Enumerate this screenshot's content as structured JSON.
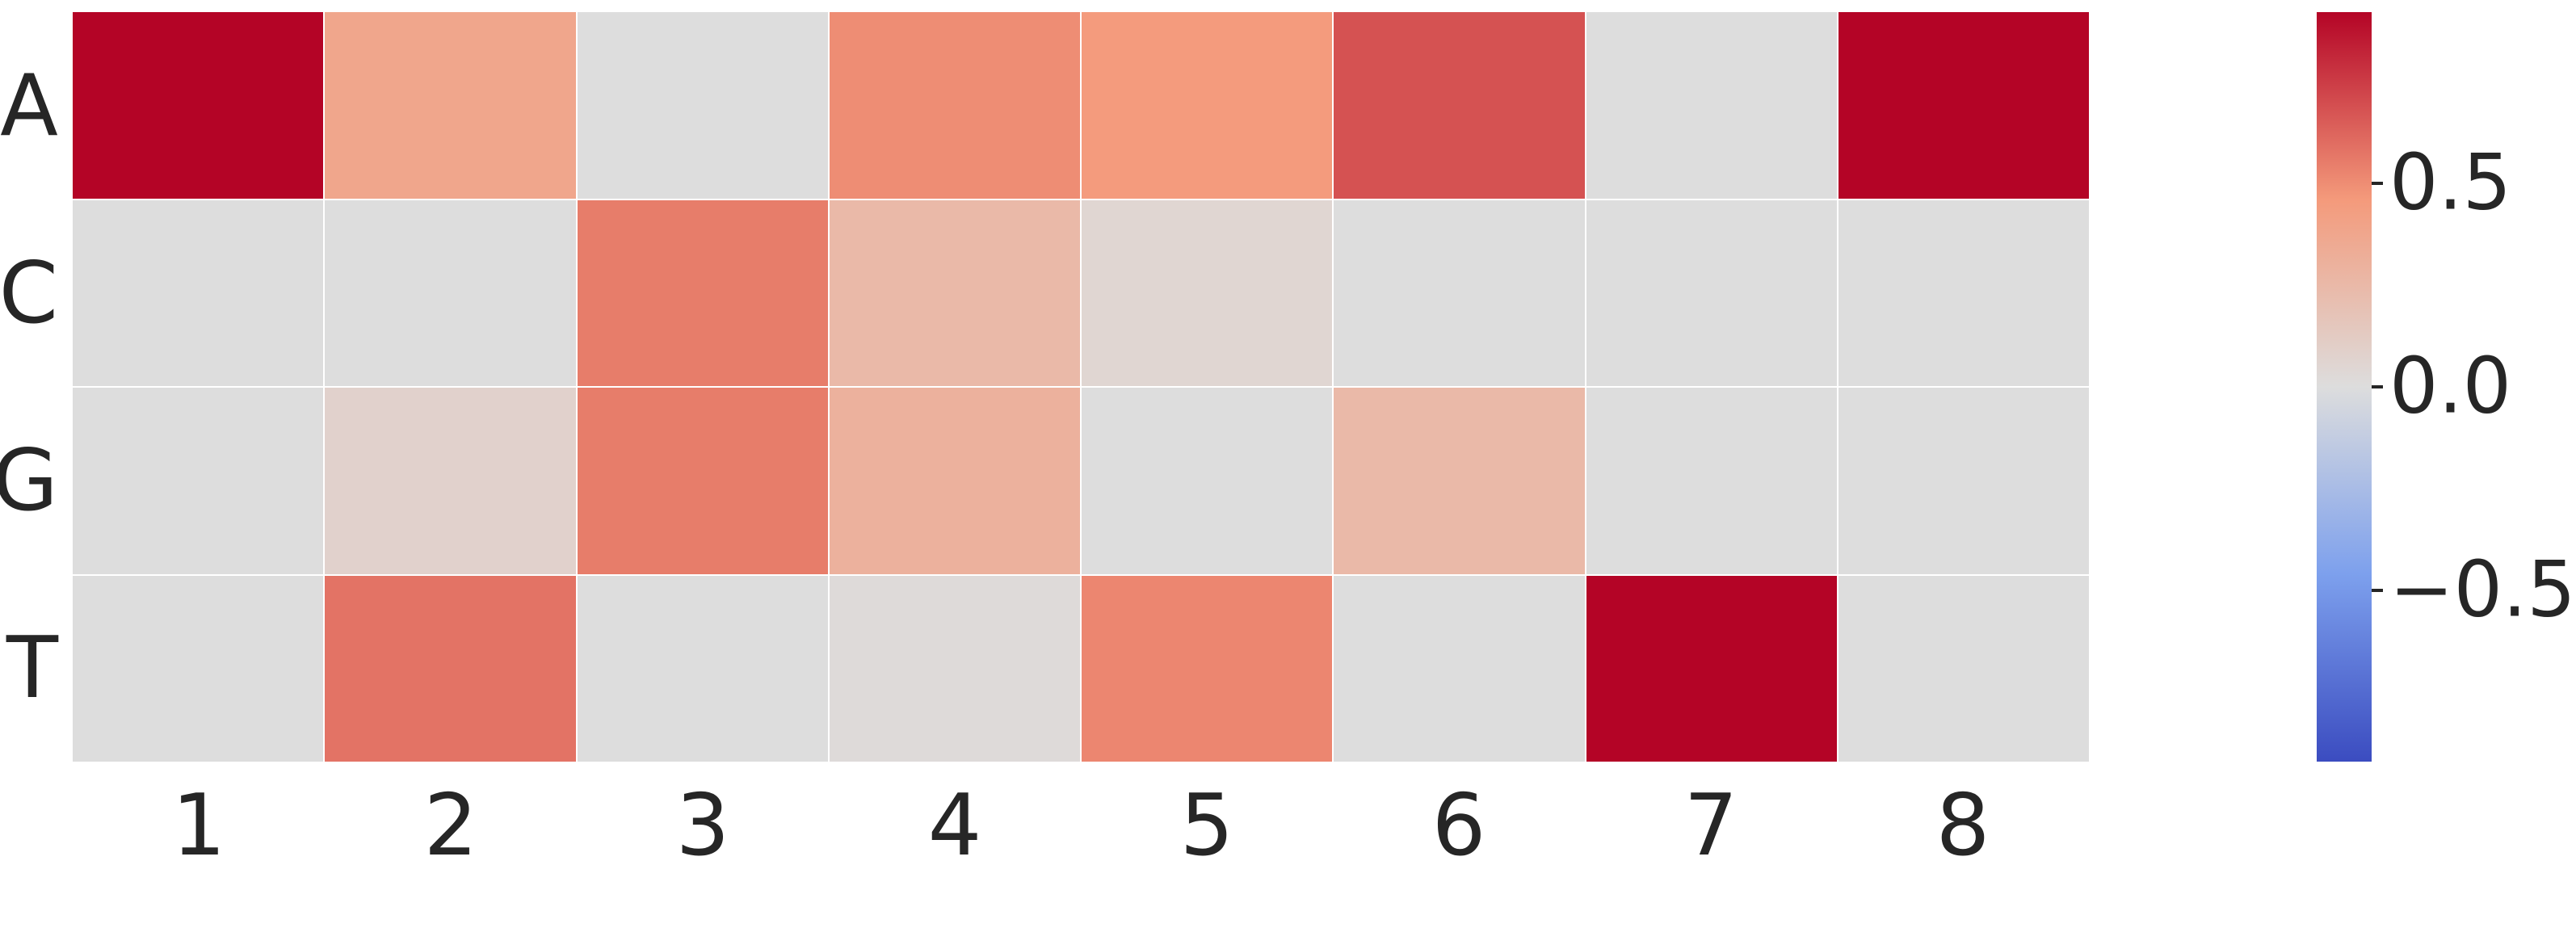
{
  "chart_data": {
    "type": "heatmap",
    "rows": [
      "A",
      "C",
      "G",
      "T"
    ],
    "columns": [
      "1",
      "2",
      "3",
      "4",
      "5",
      "6",
      "7",
      "8"
    ],
    "values": [
      [
        0.92,
        0.38,
        0.0,
        0.5,
        0.45,
        0.68,
        0.0,
        0.92
      ],
      [
        0.0,
        0.0,
        0.55,
        0.25,
        0.05,
        0.0,
        0.0,
        0.0
      ],
      [
        0.0,
        0.08,
        0.55,
        0.3,
        0.0,
        0.25,
        0.0,
        0.0
      ],
      [
        0.0,
        0.58,
        0.0,
        0.02,
        0.52,
        0.0,
        0.92,
        0.0
      ]
    ],
    "vmin": -0.92,
    "vmax": 0.92,
    "colormap": {
      "name": "coolwarm",
      "stops": [
        "#3b4cc0",
        "#7da0ed",
        "#dddddd",
        "#f49a7b",
        "#b40426"
      ]
    },
    "colorbar": {
      "position": "right",
      "ticks": [
        {
          "value": 0.5,
          "label": "0.5"
        },
        {
          "value": 0.0,
          "label": "0.0"
        },
        {
          "value": -0.5,
          "label": "−0.5"
        }
      ]
    },
    "grid_line_color": "#ffffff",
    "legend_position": "none",
    "title": ""
  },
  "colors": {
    "background": "#ffffff",
    "text": "#262626",
    "zero_cell": "#dddddd",
    "max_cell": "#b40426",
    "min_cell": "#3b4cc0"
  }
}
